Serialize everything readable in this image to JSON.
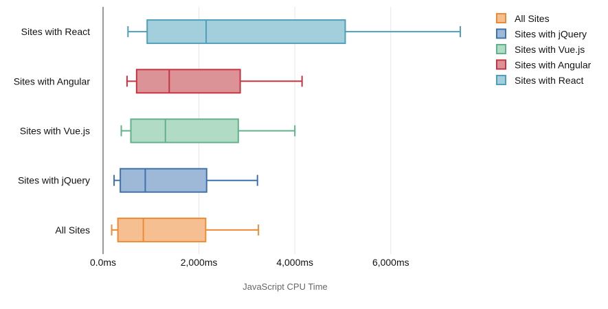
{
  "chart_data": {
    "type": "boxplot",
    "orientation": "horizontal",
    "xlabel": "JavaScript CPU Time",
    "xlim": [
      0,
      7800
    ],
    "x_ticks": [
      {
        "value": 0,
        "label": "0.0ms"
      },
      {
        "value": 2000,
        "label": "2,000ms"
      },
      {
        "value": 4000,
        "label": "4,000ms"
      },
      {
        "value": 6000,
        "label": "6,000ms"
      }
    ],
    "grid": true,
    "legend_position": "top-right",
    "categories": [
      "Sites with React",
      "Sites with Angular",
      "Sites with Vue.js",
      "Sites with jQuery",
      "All Sites"
    ],
    "legend": [
      "All Sites",
      "Sites with jQuery",
      "Sites with Vue.js",
      "Sites with Angular",
      "Sites with React"
    ],
    "series": [
      {
        "name": "Sites with React",
        "min": 520,
        "q1": 920,
        "median": 2150,
        "q3": 5050,
        "max": 7450,
        "color": "#4e9fba",
        "fill": "#a3cedc"
      },
      {
        "name": "Sites with Angular",
        "min": 500,
        "q1": 700,
        "median": 1380,
        "q3": 2860,
        "max": 4150,
        "color": "#c83341",
        "fill": "#db9398"
      },
      {
        "name": "Sites with Vue.js",
        "min": 380,
        "q1": 580,
        "median": 1300,
        "q3": 2820,
        "max": 4000,
        "color": "#61b18a",
        "fill": "#b2dbc5"
      },
      {
        "name": "Sites with jQuery",
        "min": 230,
        "q1": 360,
        "median": 880,
        "q3": 2160,
        "max": 3220,
        "color": "#3d72ad",
        "fill": "#9eb9d7"
      },
      {
        "name": "All Sites",
        "min": 180,
        "q1": 310,
        "median": 840,
        "q3": 2140,
        "max": 3240,
        "color": "#ee8a33",
        "fill": "#f6bf91"
      }
    ]
  }
}
